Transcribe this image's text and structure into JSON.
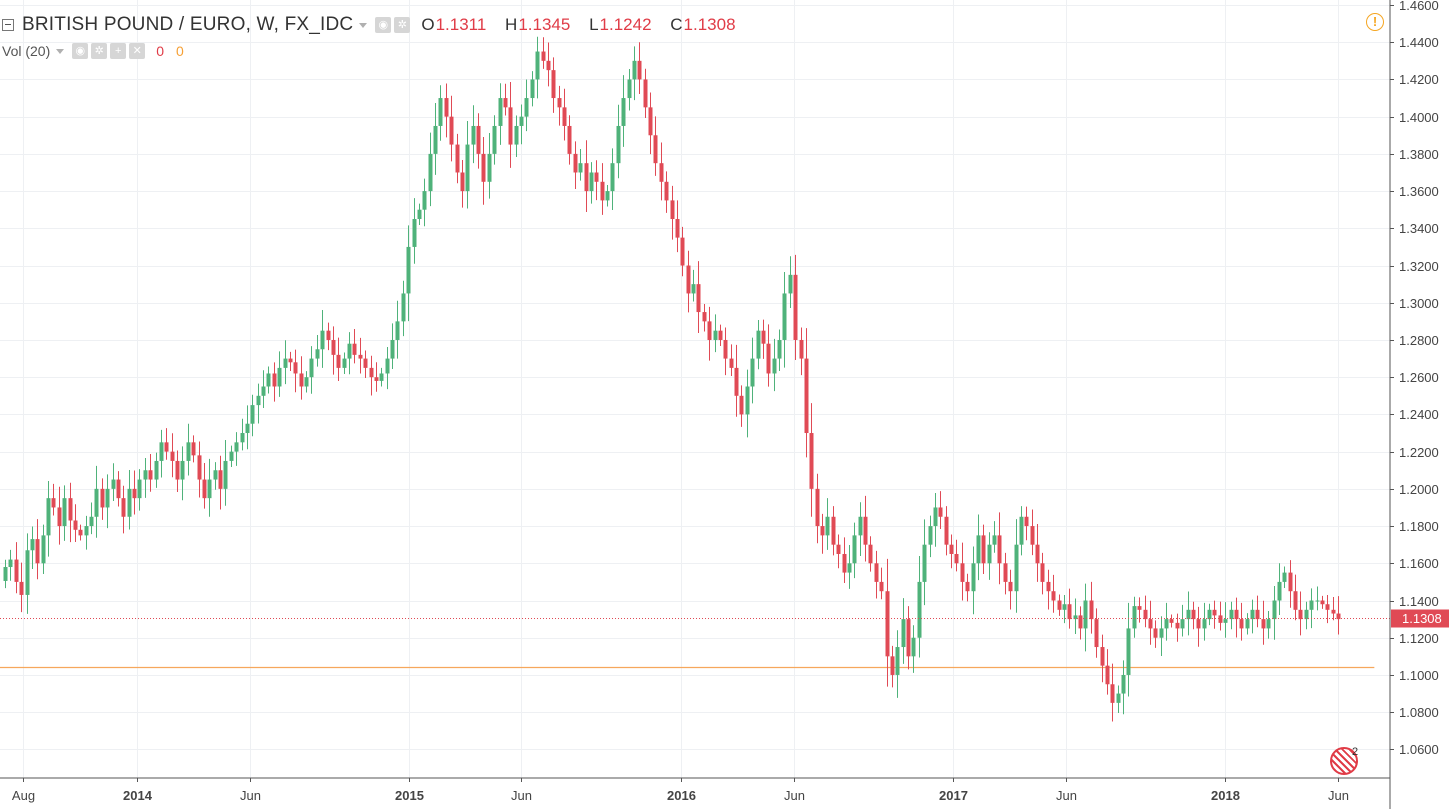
{
  "header": {
    "symbol_title": "BRITISH POUND / EURO, W, FX_IDC",
    "ohlc": [
      {
        "key": "O",
        "value": "1.1311"
      },
      {
        "key": "H",
        "value": "1.1345"
      },
      {
        "key": "L",
        "value": "1.1242"
      },
      {
        "key": "C",
        "value": "1.1308"
      }
    ],
    "volume": {
      "label": "Vol (20)",
      "value1": "0",
      "value2": "0"
    }
  },
  "alert_icon_text": "!",
  "compare_badge": "2",
  "colors": {
    "up": "#4fb27a",
    "down": "#e04a55",
    "grid": "#eef0f3",
    "axis_text": "#444444",
    "price_line": "#e04a55",
    "hline": "#f6a75c"
  },
  "chart_data": {
    "type": "candlestick",
    "title": "BRITISH POUND / EURO, W, FX_IDC",
    "interval": "W",
    "y_range": [
      1.05,
      1.46
    ],
    "y_ticks": [
      "1.4600",
      "1.4400",
      "1.4200",
      "1.4000",
      "1.3800",
      "1.3600",
      "1.3400",
      "1.3200",
      "1.3000",
      "1.2800",
      "1.2600",
      "1.2400",
      "1.2200",
      "1.2000",
      "1.1800",
      "1.1600",
      "1.1400",
      "1.1200",
      "1.1000",
      "1.0800",
      "1.0600"
    ],
    "x_ticks": [
      {
        "label": "Aug",
        "date": "2013-08-01",
        "bold": false
      },
      {
        "label": "2014",
        "date": "2014-01-01",
        "bold": true
      },
      {
        "label": "Jun",
        "date": "2014-06-01",
        "bold": false
      },
      {
        "label": "2015",
        "date": "2015-01-01",
        "bold": true
      },
      {
        "label": "Jun",
        "date": "2015-06-01",
        "bold": false
      },
      {
        "label": "2016",
        "date": "2016-01-01",
        "bold": true
      },
      {
        "label": "Jun",
        "date": "2016-06-01",
        "bold": false
      },
      {
        "label": "2017",
        "date": "2017-01-01",
        "bold": true
      },
      {
        "label": "Jun",
        "date": "2017-06-01",
        "bold": false
      },
      {
        "label": "2018",
        "date": "2018-01-01",
        "bold": true
      },
      {
        "label": "Jun",
        "date": "2018-06-01",
        "bold": false
      }
    ],
    "x_start_date": "2013-07-01",
    "x_end_date": "2018-08-10",
    "last_price": {
      "label": "1.1308",
      "value": 1.1308
    },
    "horizontal_line": {
      "value": 1.1045,
      "from_date": "2013-07-01",
      "to_date": "2018-07-20"
    },
    "closes": [
      1.158,
      1.162,
      1.15,
      1.143,
      1.167,
      1.173,
      1.16,
      1.175,
      1.195,
      1.19,
      1.18,
      1.195,
      1.183,
      1.178,
      1.175,
      1.18,
      1.185,
      1.2,
      1.19,
      1.2,
      1.205,
      1.195,
      1.185,
      1.2,
      1.195,
      1.205,
      1.21,
      1.205,
      1.215,
      1.225,
      1.22,
      1.215,
      1.205,
      1.215,
      1.225,
      1.218,
      1.205,
      1.195,
      1.205,
      1.21,
      1.2,
      1.215,
      1.22,
      1.225,
      1.23,
      1.235,
      1.245,
      1.25,
      1.255,
      1.262,
      1.255,
      1.265,
      1.27,
      1.268,
      1.262,
      1.255,
      1.26,
      1.27,
      1.275,
      1.285,
      1.28,
      1.272,
      1.265,
      1.27,
      1.278,
      1.272,
      1.27,
      1.265,
      1.26,
      1.258,
      1.262,
      1.27,
      1.28,
      1.29,
      1.305,
      1.33,
      1.345,
      1.35,
      1.36,
      1.38,
      1.395,
      1.41,
      1.4,
      1.385,
      1.37,
      1.36,
      1.385,
      1.395,
      1.38,
      1.365,
      1.38,
      1.395,
      1.41,
      1.405,
      1.385,
      1.395,
      1.4,
      1.41,
      1.42,
      1.435,
      1.43,
      1.425,
      1.41,
      1.405,
      1.395,
      1.38,
      1.37,
      1.375,
      1.36,
      1.37,
      1.365,
      1.355,
      1.36,
      1.375,
      1.395,
      1.41,
      1.42,
      1.43,
      1.42,
      1.405,
      1.39,
      1.375,
      1.365,
      1.355,
      1.345,
      1.335,
      1.32,
      1.305,
      1.31,
      1.295,
      1.29,
      1.28,
      1.285,
      1.28,
      1.27,
      1.265,
      1.25,
      1.24,
      1.255,
      1.27,
      1.285,
      1.278,
      1.262,
      1.27,
      1.28,
      1.305,
      1.315,
      1.28,
      1.27,
      1.23,
      1.2,
      1.18,
      1.175,
      1.185,
      1.17,
      1.165,
      1.155,
      1.16,
      1.175,
      1.185,
      1.17,
      1.16,
      1.15,
      1.145,
      1.11,
      1.1,
      1.115,
      1.13,
      1.11,
      1.12,
      1.15,
      1.17,
      1.18,
      1.19,
      1.185,
      1.17,
      1.165,
      1.16,
      1.15,
      1.145,
      1.16,
      1.175,
      1.16,
      1.17,
      1.175,
      1.16,
      1.15,
      1.145,
      1.17,
      1.185,
      1.18,
      1.17,
      1.16,
      1.15,
      1.145,
      1.14,
      1.135,
      1.138,
      1.13,
      1.132,
      1.125,
      1.14,
      1.13,
      1.115,
      1.105,
      1.095,
      1.085,
      1.09,
      1.1,
      1.125,
      1.137,
      1.135,
      1.13,
      1.125,
      1.12,
      1.125,
      1.13,
      1.128,
      1.125,
      1.13,
      1.135,
      1.13,
      1.125,
      1.13,
      1.135,
      1.132,
      1.128,
      1.13,
      1.135,
      1.13,
      1.125,
      1.13,
      1.135,
      1.13,
      1.125,
      1.13,
      1.14,
      1.15,
      1.155,
      1.145,
      1.135,
      1.13,
      1.135,
      1.14,
      1.14,
      1.138,
      1.135,
      1.133,
      1.13
    ]
  }
}
